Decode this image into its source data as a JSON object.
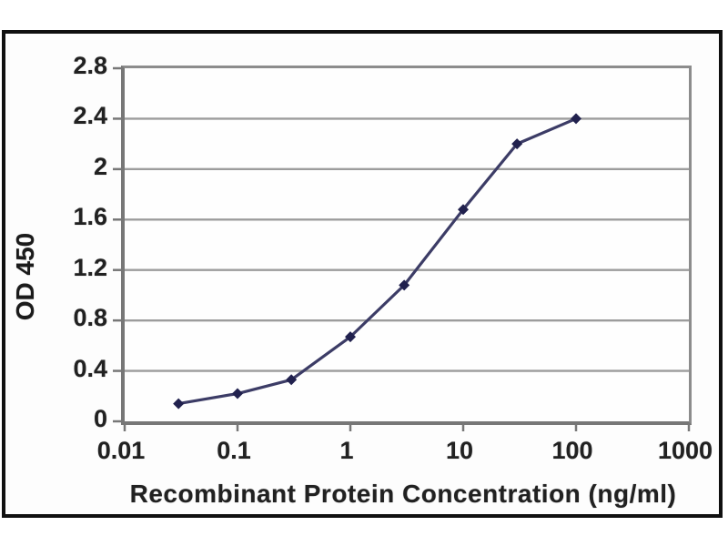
{
  "figure": {
    "xlabel": "Recombinant Protein Concentration (ng/ml)",
    "ylabel": "OD 450"
  },
  "chart_data": {
    "type": "line",
    "title": "",
    "xlabel": "Recombinant Protein Concentration (ng/ml)",
    "ylabel": "OD 450",
    "x_scale": "log",
    "y_scale": "linear",
    "xlim": [
      0.01,
      1000
    ],
    "ylim": [
      0,
      2.8
    ],
    "grid": true,
    "legend": false,
    "marker": "diamond",
    "x_ticks": [
      0.01,
      0.1,
      1,
      10,
      100,
      1000
    ],
    "x_tick_labels": [
      "0.01",
      "0.1",
      "1",
      "10",
      "100",
      "1000"
    ],
    "y_ticks": [
      0,
      0.4,
      0.8,
      1.2,
      1.6,
      2,
      2.4,
      2.8
    ],
    "y_tick_labels": [
      "0",
      "0.4",
      "0.8",
      "1.2",
      "1.6",
      "2",
      "2.4",
      "2.8"
    ],
    "series": [
      {
        "name": "OD 450",
        "x": [
          0.03,
          0.1,
          0.3,
          1,
          3,
          10,
          30,
          100
        ],
        "y": [
          0.14,
          0.22,
          0.33,
          0.67,
          1.08,
          1.68,
          2.2,
          2.4
        ]
      }
    ]
  },
  "colors": {
    "line": "#3c3c66",
    "marker": "#21214e",
    "gridline": "#9c9c9c",
    "axis": "#777777",
    "frame_border": "#101010",
    "text": "#212121",
    "background": "#fdfdfd"
  }
}
